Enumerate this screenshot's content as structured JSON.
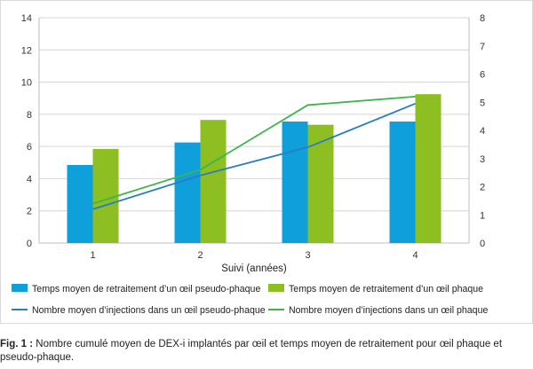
{
  "chart_data": {
    "type": "bar+line",
    "categories": [
      "1",
      "2",
      "3",
      "4"
    ],
    "xlabel": "Suivi (années)",
    "left_axis": {
      "ylim": [
        0,
        14
      ],
      "ticks": [
        "0",
        "2",
        "4",
        "6",
        "8",
        "10",
        "12",
        "14"
      ]
    },
    "right_axis": {
      "ylim": [
        0,
        8
      ],
      "ticks": [
        "0",
        "1",
        "2",
        "3",
        "4",
        "5",
        "6",
        "7",
        "8"
      ]
    },
    "grid": true,
    "legend_position": "bottom",
    "series": [
      {
        "name": "Temps moyen de retraitement d’un œil pseudo-phaque",
        "kind": "bar",
        "axis": "left",
        "color": "#0FA0DB",
        "values": [
          4.85,
          6.25,
          7.55,
          7.55
        ]
      },
      {
        "name": "Temps moyen de retraitement d’un œil phaque",
        "kind": "bar",
        "axis": "left",
        "color": "#8DBE22",
        "values": [
          5.85,
          7.65,
          7.35,
          9.25
        ]
      },
      {
        "name": "Nombre moyen d’injections dans un œil pseudo-phaque",
        "kind": "line",
        "axis": "right",
        "color": "#2A7DC4",
        "values": [
          1.2,
          2.4,
          3.4,
          4.95
        ]
      },
      {
        "name": "Nombre moyen d’injections dans un œil phaque",
        "kind": "line",
        "axis": "right",
        "color": "#3DB549",
        "values": [
          1.4,
          2.6,
          4.9,
          5.2
        ]
      }
    ]
  },
  "caption": {
    "label": "Fig. 1 :",
    "text": "Nombre cumulé moyen de DEX-i implantés par œil et temps moyen de retraitement pour œil phaque et pseudo-phaque."
  }
}
